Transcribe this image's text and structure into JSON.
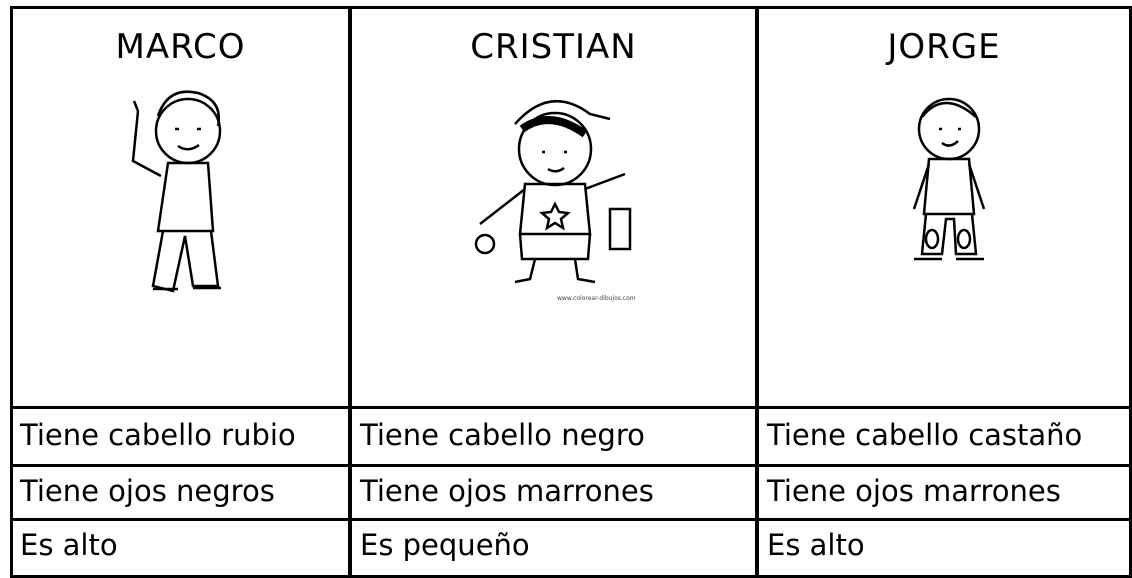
{
  "table": {
    "headers": [
      "MARCO",
      "CRISTIAN",
      "JORGE"
    ],
    "rows": [
      [
        "Tiene cabello rubio",
        "Tiene cabello negro",
        "Tiene cabello castaño"
      ],
      [
        "Tiene ojos negros",
        "Tiene ojos marrones",
        "Tiene ojos marrones"
      ],
      [
        "Es alto",
        "Es pequeño",
        "Es alto"
      ]
    ]
  },
  "watermark": "www.colorear-dibujos.com"
}
